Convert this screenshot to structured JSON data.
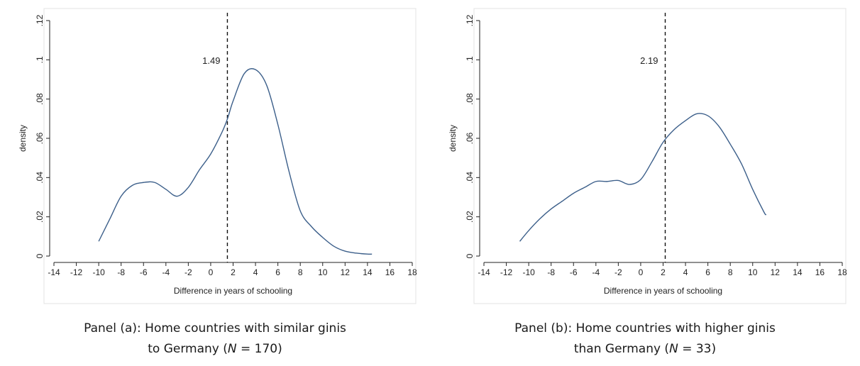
{
  "chart_data": [
    {
      "type": "line",
      "panel_id": "a",
      "caption_line1": "Panel (a): Home countries with similar ginis",
      "caption_line2_prefix": "to Germany (",
      "caption_n_label": "N",
      "caption_line2_suffix": " = 170)",
      "xlabel": "Difference in years of schooling",
      "ylabel": "density",
      "xlim": [
        -14,
        18
      ],
      "ylim": [
        0,
        0.12
      ],
      "x_ticks": [
        -14,
        -12,
        -10,
        -8,
        -6,
        -4,
        -2,
        0,
        2,
        4,
        6,
        8,
        10,
        12,
        14,
        16,
        18
      ],
      "y_ticks": [
        0,
        0.02,
        0.04,
        0.06,
        0.08,
        0.1,
        0.12
      ],
      "y_tick_labels": [
        "0",
        ".02",
        ".04",
        ".06",
        ".08",
        ".1",
        ".12"
      ],
      "reference_line": {
        "x": 1.49,
        "label": "1.49",
        "style": "dashed"
      },
      "series": [
        {
          "x": [
            -10,
            -9,
            -8,
            -7,
            -6,
            -5,
            -4,
            -3,
            -2,
            -1,
            0,
            1,
            1.5,
            2,
            3,
            4,
            5,
            6,
            7,
            8,
            9,
            10,
            11,
            12,
            13,
            14,
            14.4
          ],
          "values": [
            0.0075,
            0.019,
            0.0305,
            0.036,
            0.0375,
            0.0375,
            0.034,
            0.0305,
            0.035,
            0.044,
            0.052,
            0.063,
            0.07,
            0.079,
            0.093,
            0.095,
            0.087,
            0.067,
            0.043,
            0.023,
            0.015,
            0.0095,
            0.005,
            0.0025,
            0.0015,
            0.001,
            0.001
          ]
        }
      ]
    },
    {
      "type": "line",
      "panel_id": "b",
      "caption_line1": "Panel (b): Home countries with higher ginis",
      "caption_line2_prefix": "than Germany (",
      "caption_n_label": "N",
      "caption_line2_suffix": " = 33)",
      "xlabel": "Difference in years of schooling",
      "ylabel": "density",
      "xlim": [
        -14,
        18
      ],
      "ylim": [
        0,
        0.12
      ],
      "x_ticks": [
        -14,
        -12,
        -10,
        -8,
        -6,
        -4,
        -2,
        0,
        2,
        4,
        6,
        8,
        10,
        12,
        14,
        16,
        18
      ],
      "y_ticks": [
        0,
        0.02,
        0.04,
        0.06,
        0.08,
        0.1,
        0.12
      ],
      "y_tick_labels": [
        "0",
        ".02",
        ".04",
        ".06",
        ".08",
        ".1",
        ".12"
      ],
      "reference_line": {
        "x": 2.19,
        "label": "2.19",
        "style": "dashed"
      },
      "series": [
        {
          "x": [
            -10.8,
            -10,
            -9,
            -8,
            -7,
            -6,
            -5,
            -4,
            -3,
            -2,
            -1,
            0,
            1,
            2,
            3,
            4,
            5,
            6,
            7,
            8,
            9,
            10,
            11,
            11.2
          ],
          "values": [
            0.0075,
            0.013,
            0.019,
            0.024,
            0.028,
            0.032,
            0.035,
            0.038,
            0.038,
            0.0385,
            0.0365,
            0.039,
            0.048,
            0.058,
            0.0645,
            0.069,
            0.0725,
            0.0715,
            0.066,
            0.057,
            0.047,
            0.034,
            0.0225,
            0.021
          ]
        }
      ]
    }
  ]
}
